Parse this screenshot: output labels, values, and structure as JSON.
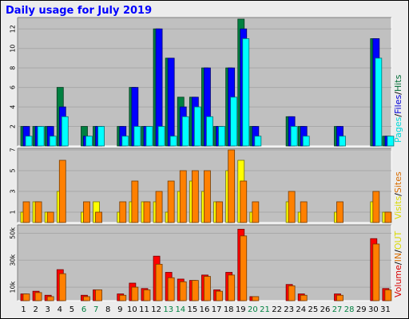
{
  "title": "Daily usage for July 2019",
  "colors": {
    "hits": "#008040",
    "files": "#0000ff",
    "pages": "#00ffff",
    "visits": "#ffff00",
    "sites": "#ff8000",
    "kbytes": "#ff0000",
    "kbin": "#ff8000",
    "kbout": "#ffff00",
    "weekend": "#008040",
    "weekday": "#000000",
    "plot_bg": "#c0c0c0",
    "frame_bg": "#ececec"
  },
  "chart_data": [
    {
      "type": "bar",
      "categories": [
        "1",
        "2",
        "3",
        "4",
        "5",
        "6",
        "7",
        "8",
        "9",
        "10",
        "11",
        "12",
        "13",
        "14",
        "15",
        "16",
        "17",
        "18",
        "19",
        "20",
        "21",
        "22",
        "23",
        "24",
        "25",
        "26",
        "27",
        "28",
        "29",
        "30",
        "31"
      ],
      "weekend_days": [
        "6",
        "7",
        "13",
        "14",
        "20",
        "21",
        "27",
        "28"
      ],
      "ylim": [
        0,
        13
      ],
      "yticks": [
        2,
        4,
        6,
        8,
        10,
        12
      ],
      "legend": [
        "Pages",
        "/",
        "Files",
        "/",
        "Hits"
      ],
      "series": [
        {
          "name": "Hits",
          "color_key": "hits",
          "values": [
            2,
            2,
            2,
            6,
            0,
            2,
            2,
            0,
            2,
            6,
            2,
            12,
            9,
            5,
            5,
            8,
            2,
            8,
            13,
            2,
            0,
            0,
            3,
            2,
            0,
            0,
            2,
            0,
            0,
            11,
            1
          ]
        },
        {
          "name": "Files",
          "color_key": "files",
          "values": [
            2,
            2,
            2,
            4,
            0,
            1,
            2,
            0,
            2,
            6,
            2,
            12,
            9,
            4,
            5,
            8,
            2,
            8,
            12,
            2,
            0,
            0,
            3,
            2,
            0,
            0,
            2,
            0,
            0,
            11,
            1
          ]
        },
        {
          "name": "Pages",
          "color_key": "pages",
          "values": [
            1,
            2,
            1,
            3,
            0,
            1,
            2,
            0,
            1,
            2,
            2,
            2,
            1,
            3,
            4,
            3,
            2,
            5,
            11,
            1,
            0,
            0,
            2,
            1,
            0,
            0,
            1,
            0,
            0,
            9,
            1
          ]
        }
      ]
    },
    {
      "type": "bar",
      "categories": [
        "1",
        "2",
        "3",
        "4",
        "5",
        "6",
        "7",
        "8",
        "9",
        "10",
        "11",
        "12",
        "13",
        "14",
        "15",
        "16",
        "17",
        "18",
        "19",
        "20",
        "21",
        "22",
        "23",
        "24",
        "25",
        "26",
        "27",
        "28",
        "29",
        "30",
        "31"
      ],
      "ylim": [
        0,
        7
      ],
      "yticks": [
        1,
        3,
        5,
        7
      ],
      "legend": [
        "Visits",
        "/",
        "Sites"
      ],
      "series": [
        {
          "name": "Visits",
          "color_key": "visits",
          "values": [
            1,
            2,
            1,
            3,
            0,
            1,
            2,
            0,
            1,
            2,
            2,
            2,
            1,
            3,
            4,
            3,
            2,
            5,
            6,
            1,
            0,
            0,
            2,
            1,
            0,
            0,
            1,
            0,
            0,
            2,
            1
          ]
        },
        {
          "name": "Sites",
          "color_key": "sites",
          "values": [
            2,
            2,
            1,
            6,
            0,
            2,
            1,
            0,
            2,
            4,
            2,
            3,
            4,
            5,
            5,
            5,
            2,
            7,
            4,
            2,
            0,
            0,
            3,
            2,
            0,
            0,
            2,
            0,
            0,
            3,
            1
          ]
        }
      ]
    },
    {
      "type": "bar",
      "categories": [
        "1",
        "2",
        "3",
        "4",
        "5",
        "6",
        "7",
        "8",
        "9",
        "10",
        "11",
        "12",
        "13",
        "14",
        "15",
        "16",
        "17",
        "18",
        "19",
        "20",
        "21",
        "22",
        "23",
        "24",
        "25",
        "26",
        "27",
        "28",
        "29",
        "30",
        "31"
      ],
      "ylim": [
        0,
        55000
      ],
      "yticks": [
        10000,
        30000,
        50000
      ],
      "ytick_labels": [
        "10k",
        "30k",
        "50k"
      ],
      "legend": [
        "Volume",
        "/",
        "IN",
        "/",
        "OUT"
      ],
      "series": [
        {
          "name": "Volume",
          "color_key": "kbytes",
          "values": [
            5000,
            7000,
            4000,
            23000,
            0,
            4000,
            8000,
            0,
            5000,
            13000,
            9000,
            33000,
            21000,
            16000,
            15000,
            19000,
            8000,
            21000,
            53000,
            3000,
            0,
            0,
            12000,
            5000,
            0,
            0,
            5000,
            0,
            0,
            46000,
            9000
          ]
        },
        {
          "name": "IN",
          "color_key": "kbin",
          "values": [
            5000,
            6000,
            3000,
            20000,
            0,
            3000,
            8000,
            0,
            4000,
            10000,
            8000,
            27000,
            17000,
            14000,
            15000,
            18000,
            7000,
            19000,
            48000,
            3000,
            0,
            0,
            11000,
            4000,
            0,
            0,
            4000,
            0,
            0,
            42000,
            8000
          ]
        },
        {
          "name": "OUT",
          "color_key": "kbout",
          "values": [
            0,
            0,
            0,
            0,
            0,
            0,
            0,
            0,
            0,
            0,
            0,
            0,
            0,
            0,
            0,
            0,
            0,
            0,
            0,
            0,
            0,
            0,
            0,
            0,
            0,
            0,
            0,
            0,
            0,
            0,
            0
          ]
        }
      ]
    }
  ]
}
